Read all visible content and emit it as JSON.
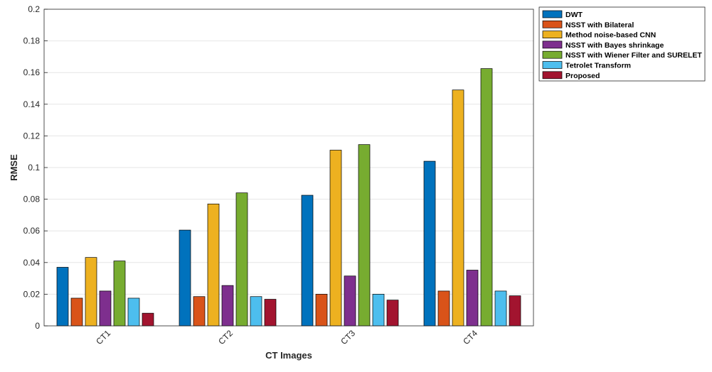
{
  "chart_data": {
    "type": "bar",
    "title": "",
    "xlabel": "CT Images",
    "ylabel": "RMSE",
    "categories": [
      "CT1",
      "CT2",
      "CT3",
      "CT4"
    ],
    "ylim": [
      0,
      0.2
    ],
    "yticks": [
      "0",
      "0.02",
      "0.04",
      "0.06",
      "0.08",
      "0.1",
      "0.12",
      "0.14",
      "0.16",
      "0.18",
      "0.2"
    ],
    "grid": true,
    "legend_position": "top-right outside",
    "series": [
      {
        "name": "DWT",
        "color": "#0072BD",
        "values": [
          0.037,
          0.0605,
          0.0825,
          0.104
        ]
      },
      {
        "name": "NSST with Bilateral",
        "color": "#D95319",
        "values": [
          0.0175,
          0.0185,
          0.02,
          0.022
        ]
      },
      {
        "name": "Method noise-based CNN",
        "color": "#EDB120",
        "values": [
          0.0432,
          0.077,
          0.111,
          0.149
        ]
      },
      {
        "name": "NSST with Bayes shrinkage",
        "color": "#7E2F8E",
        "values": [
          0.022,
          0.0255,
          0.0315,
          0.0352
        ]
      },
      {
        "name": "NSST with Wiener Filter and SURELET",
        "color": "#77AC30",
        "values": [
          0.041,
          0.084,
          0.1145,
          0.1625
        ]
      },
      {
        "name": "Tetrolet Transform",
        "color": "#4DBEEE",
        "values": [
          0.0175,
          0.0185,
          0.02,
          0.022
        ]
      },
      {
        "name": "Proposed",
        "color": "#A2142F",
        "values": [
          0.008,
          0.0168,
          0.0163,
          0.019
        ]
      }
    ]
  }
}
